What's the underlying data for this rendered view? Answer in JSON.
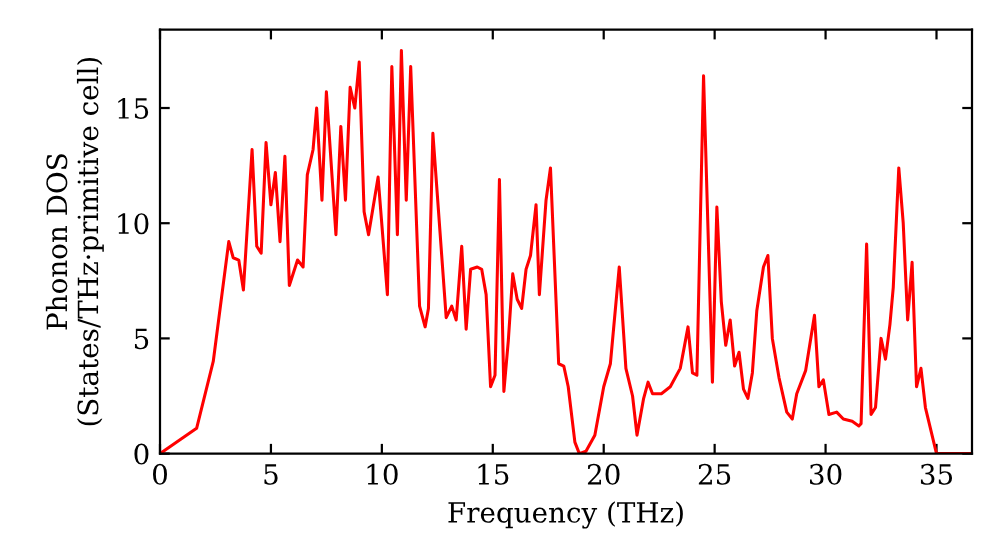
{
  "chart_data": {
    "type": "line",
    "xlabel": "Frequency (THz)",
    "ylabel": "Phonon DOS\n(States/THz·primitive cell)",
    "xlim": [
      0,
      36.6
    ],
    "ylim": [
      0,
      18.4
    ],
    "xticks": [
      0,
      5,
      10,
      15,
      20,
      25,
      30,
      35
    ],
    "yticks": [
      0,
      5,
      10,
      15
    ],
    "grid": false,
    "marker": "none",
    "line_style": "solid",
    "series": [
      {
        "color": "#ff0000",
        "x": [
          0,
          1.65,
          2.4,
          3.1,
          3.3,
          3.55,
          3.76,
          4.15,
          4.36,
          4.56,
          4.78,
          5.0,
          5.2,
          5.41,
          5.63,
          5.83,
          6.2,
          6.45,
          6.64,
          6.9,
          7.06,
          7.3,
          7.5,
          7.93,
          8.15,
          8.36,
          8.57,
          8.78,
          8.98,
          9.2,
          9.4,
          9.83,
          10.25,
          10.45,
          10.7,
          10.88,
          11.1,
          11.3,
          11.7,
          11.95,
          12.1,
          12.3,
          12.9,
          13.15,
          13.35,
          13.6,
          13.8,
          14.0,
          14.3,
          14.5,
          14.7,
          14.9,
          15.1,
          15.3,
          15.5,
          15.7,
          15.9,
          16.1,
          16.3,
          16.5,
          16.7,
          16.95,
          17.1,
          17.4,
          17.6,
          17.97,
          18.2,
          18.4,
          18.7,
          18.9,
          19.2,
          19.6,
          20.0,
          20.3,
          20.7,
          21.0,
          21.3,
          21.5,
          21.8,
          22.0,
          22.2,
          22.6,
          23.0,
          23.45,
          23.8,
          24.0,
          24.2,
          24.5,
          24.9,
          25.1,
          25.3,
          25.5,
          25.7,
          25.9,
          26.1,
          26.3,
          26.5,
          26.7,
          26.9,
          27.2,
          27.4,
          27.6,
          27.9,
          28.25,
          28.5,
          28.7,
          29.1,
          29.5,
          29.7,
          29.9,
          30.15,
          30.5,
          30.8,
          31.2,
          31.5,
          31.6,
          31.85,
          32.05,
          32.25,
          32.5,
          32.7,
          32.9,
          33.05,
          33.3,
          33.5,
          33.7,
          33.9,
          34.1,
          34.3,
          34.5,
          35.0,
          36.5
        ],
        "values": [
          0,
          1.1,
          4.0,
          9.2,
          8.5,
          8.4,
          7.1,
          13.2,
          9.0,
          8.7,
          13.5,
          10.8,
          12.2,
          9.2,
          12.9,
          7.3,
          8.4,
          8.1,
          12.1,
          13.2,
          15.0,
          11.0,
          15.7,
          9.5,
          14.2,
          11.0,
          15.9,
          15.0,
          17.0,
          10.5,
          9.5,
          12.0,
          6.9,
          16.8,
          9.5,
          17.5,
          11.0,
          16.8,
          6.4,
          5.5,
          6.3,
          13.9,
          5.9,
          6.4,
          5.8,
          9.0,
          5.4,
          8.0,
          8.1,
          8.0,
          6.9,
          2.9,
          3.4,
          11.9,
          2.7,
          4.9,
          7.8,
          6.7,
          6.3,
          8.0,
          8.6,
          10.8,
          6.9,
          11.0,
          12.4,
          3.9,
          3.8,
          2.9,
          0.5,
          0.0,
          0.1,
          0.8,
          2.9,
          3.9,
          8.1,
          3.7,
          2.5,
          0.8,
          2.4,
          3.1,
          2.6,
          2.6,
          2.9,
          3.7,
          5.5,
          3.5,
          3.4,
          16.4,
          3.1,
          10.7,
          6.6,
          4.7,
          5.8,
          3.8,
          4.4,
          2.8,
          2.4,
          3.5,
          6.2,
          8.1,
          8.6,
          5.0,
          3.3,
          1.8,
          1.5,
          2.6,
          3.6,
          6.0,
          2.9,
          3.2,
          1.7,
          1.8,
          1.5,
          1.4,
          1.2,
          1.3,
          9.1,
          1.7,
          2.0,
          5.0,
          4.1,
          5.6,
          7.2,
          12.4,
          10.0,
          5.8,
          8.3,
          2.9,
          3.7,
          2.0,
          0,
          0
        ]
      }
    ]
  }
}
